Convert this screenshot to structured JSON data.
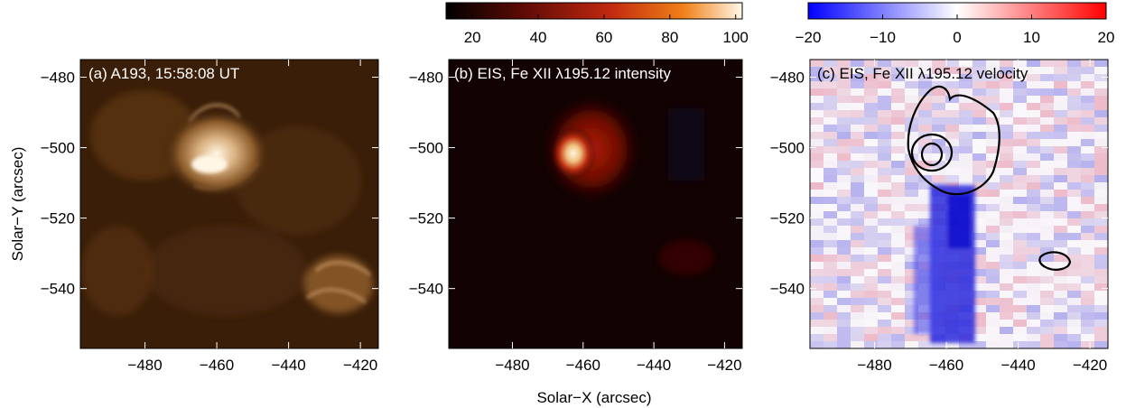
{
  "figure": {
    "x_axis_label": "Solar−X (arcsec)",
    "y_axis_label": "Solar−Y (arcsec)",
    "x_ticks": [
      "−480",
      "−460",
      "−440",
      "−420"
    ],
    "y_ticks": [
      "−480",
      "−500",
      "−520",
      "−540"
    ],
    "x_range": [
      -498,
      -415
    ],
    "y_range": [
      -557,
      -475
    ]
  },
  "panels": [
    {
      "id": "a",
      "label": "(a) A193, 15:58:08 UT",
      "colormap": "sdo-aia-193"
    },
    {
      "id": "b",
      "label": "(b) EIS, Fe XII λ195.12 intensity",
      "colormap": "red-temperature"
    },
    {
      "id": "c",
      "label": "(c) EIS, Fe XII λ195.12 velocity",
      "colormap": "blue-white-red"
    }
  ],
  "colorbars": [
    {
      "for_panel": "b",
      "ticks": [
        "20",
        "40",
        "60",
        "80",
        "100"
      ],
      "range": [
        12,
        102
      ],
      "colors": [
        "#000000",
        "#5a0a05",
        "#c0280f",
        "#f08018",
        "#fff8e8"
      ]
    },
    {
      "for_panel": "c",
      "ticks": [
        "−20",
        "−10",
        "0",
        "10",
        "20"
      ],
      "range": [
        -20,
        20
      ],
      "colors": [
        "#0000ff",
        "#ffffff",
        "#ff0000"
      ]
    }
  ]
}
